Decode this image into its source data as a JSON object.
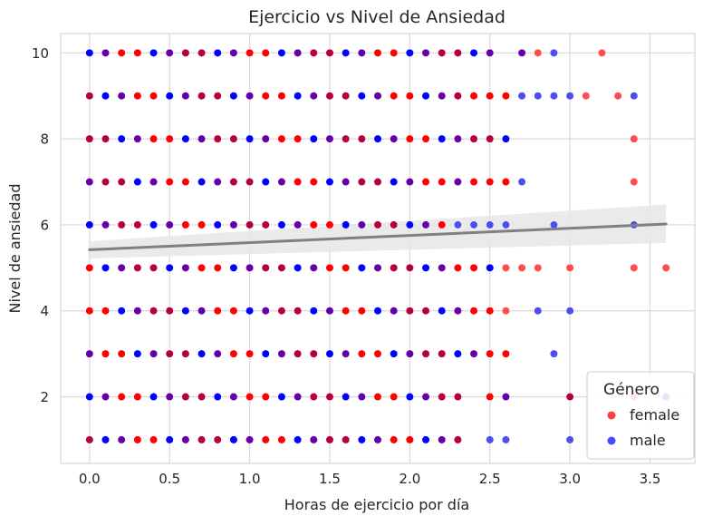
{
  "chart_data": {
    "type": "scatter",
    "title": "Ejercicio vs Nivel de Ansiedad",
    "xlabel": "Horas de ejercicio por día",
    "ylabel": "Nivel de ansiedad",
    "xlim": [
      -0.18,
      3.78
    ],
    "ylim": [
      0.45,
      10.45
    ],
    "xticks": [
      0.0,
      0.5,
      1.0,
      1.5,
      2.0,
      2.5,
      3.0,
      3.5
    ],
    "xtick_labels": [
      "0.0",
      "0.5",
      "1.0",
      "1.5",
      "2.0",
      "2.5",
      "3.0",
      "3.5"
    ],
    "yticks": [
      2,
      4,
      6,
      8,
      10
    ],
    "ytick_labels": [
      "2",
      "4",
      "6",
      "8",
      "10"
    ],
    "grid": true,
    "legend": {
      "title": "Género",
      "location": "bottom-right",
      "entries": [
        {
          "label": "female",
          "color": "#ff4040"
        },
        {
          "label": "male",
          "color": "#4a4aff"
        }
      ]
    },
    "colors": {
      "female": "#ff0000",
      "male": "#0000ff",
      "mixed_red": "#b4003c",
      "mixed_purple": "#6400aa",
      "female_sparse": "#ff4d4d",
      "male_sparse": "#4d4df0",
      "regression": "#808080",
      "confidence_band": "#e6e6e6"
    },
    "regression": {
      "x": [
        0.0,
        3.6
      ],
      "y": [
        5.42,
        6.02
      ],
      "ci_low": [
        5.22,
        5.58
      ],
      "ci_high": [
        5.62,
        6.47
      ]
    },
    "dense_grid": {
      "x_start": 0.0,
      "x_step": 0.1,
      "levels": [
        {
          "y": 10,
          "max_x": 2.5
        },
        {
          "y": 9,
          "max_x": 2.3
        },
        {
          "y": 8,
          "max_x": 2.5
        },
        {
          "y": 7,
          "max_x": 2.2
        },
        {
          "y": 6,
          "max_x": 2.2
        },
        {
          "y": 5,
          "max_x": 2.5
        },
        {
          "y": 4,
          "max_x": 2.5
        },
        {
          "y": 3,
          "max_x": 2.6
        },
        {
          "y": 2,
          "max_x": 2.3
        },
        {
          "y": 1,
          "max_x": 2.3
        }
      ]
    },
    "sparse_points": [
      {
        "x": 2.7,
        "y": 10,
        "g": "mixed_purple"
      },
      {
        "x": 2.8,
        "y": 10,
        "g": "female_sparse"
      },
      {
        "x": 2.9,
        "y": 10,
        "g": "male_sparse"
      },
      {
        "x": 3.2,
        "y": 10,
        "g": "female_sparse"
      },
      {
        "x": 2.4,
        "y": 9,
        "g": "female"
      },
      {
        "x": 2.5,
        "y": 9,
        "g": "female"
      },
      {
        "x": 2.6,
        "y": 9,
        "g": "female"
      },
      {
        "x": 2.7,
        "y": 9,
        "g": "male_sparse"
      },
      {
        "x": 2.8,
        "y": 9,
        "g": "male_sparse"
      },
      {
        "x": 2.9,
        "y": 9,
        "g": "male_sparse"
      },
      {
        "x": 3.0,
        "y": 9,
        "g": "male_sparse"
      },
      {
        "x": 3.1,
        "y": 9,
        "g": "female_sparse"
      },
      {
        "x": 3.3,
        "y": 9,
        "g": "female_sparse"
      },
      {
        "x": 3.4,
        "y": 9,
        "g": "male_sparse"
      },
      {
        "x": 2.6,
        "y": 8,
        "g": "male"
      },
      {
        "x": 3.4,
        "y": 8,
        "g": "female_sparse"
      },
      {
        "x": 2.3,
        "y": 7,
        "g": "mixed_purple"
      },
      {
        "x": 2.4,
        "y": 7,
        "g": "female"
      },
      {
        "x": 2.5,
        "y": 7,
        "g": "female"
      },
      {
        "x": 2.6,
        "y": 7,
        "g": "female"
      },
      {
        "x": 2.7,
        "y": 7,
        "g": "male_sparse"
      },
      {
        "x": 3.4,
        "y": 7,
        "g": "female_sparse"
      },
      {
        "x": 2.3,
        "y": 6,
        "g": "male_sparse"
      },
      {
        "x": 2.4,
        "y": 6,
        "g": "male_sparse"
      },
      {
        "x": 2.5,
        "y": 6,
        "g": "male_sparse"
      },
      {
        "x": 2.6,
        "y": 6,
        "g": "male_sparse"
      },
      {
        "x": 2.9,
        "y": 6,
        "g": "male_sparse"
      },
      {
        "x": 3.4,
        "y": 6,
        "g": "male_sparse"
      },
      {
        "x": 2.6,
        "y": 5,
        "g": "female_sparse"
      },
      {
        "x": 2.7,
        "y": 5,
        "g": "female_sparse"
      },
      {
        "x": 2.8,
        "y": 5,
        "g": "female_sparse"
      },
      {
        "x": 3.0,
        "y": 5,
        "g": "female_sparse"
      },
      {
        "x": 3.4,
        "y": 5,
        "g": "female_sparse"
      },
      {
        "x": 3.6,
        "y": 5,
        "g": "female_sparse"
      },
      {
        "x": 2.6,
        "y": 4,
        "g": "female_sparse"
      },
      {
        "x": 2.8,
        "y": 4,
        "g": "male_sparse"
      },
      {
        "x": 3.0,
        "y": 4,
        "g": "male_sparse"
      },
      {
        "x": 2.9,
        "y": 3,
        "g": "male_sparse"
      },
      {
        "x": 2.5,
        "y": 2,
        "g": "female"
      },
      {
        "x": 2.6,
        "y": 2,
        "g": "mixed_purple"
      },
      {
        "x": 3.0,
        "y": 2,
        "g": "mixed_red"
      },
      {
        "x": 3.4,
        "y": 2,
        "g": "female_sparse"
      },
      {
        "x": 3.6,
        "y": 2,
        "g": "male_sparse"
      },
      {
        "x": 2.5,
        "y": 1,
        "g": "male_sparse"
      },
      {
        "x": 2.6,
        "y": 1,
        "g": "male_sparse"
      },
      {
        "x": 3.0,
        "y": 1,
        "g": "male_sparse"
      }
    ]
  }
}
